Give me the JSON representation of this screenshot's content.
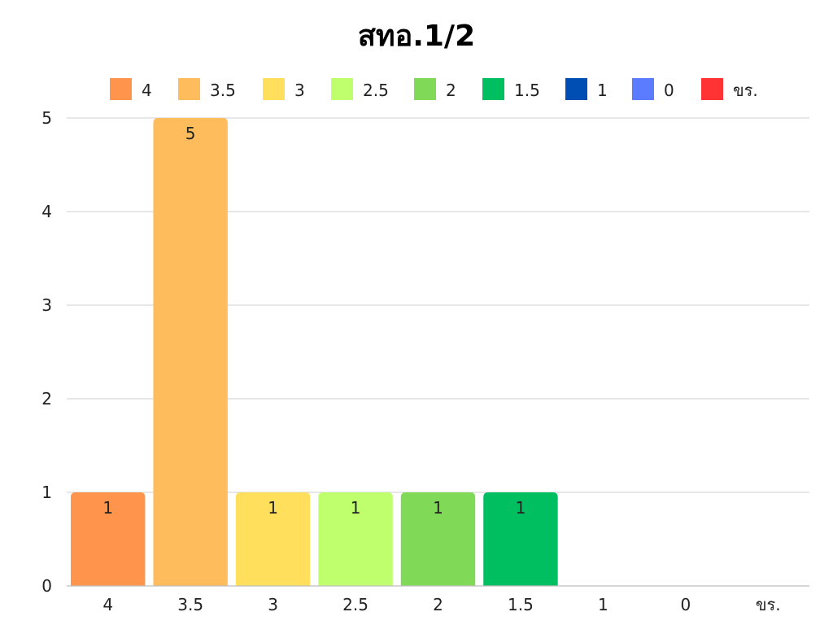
{
  "chart_data": {
    "type": "bar",
    "title": "สทอ.1/2",
    "categories": [
      "4",
      "3.5",
      "3",
      "2.5",
      "2",
      "1.5",
      "1",
      "0",
      "ขร."
    ],
    "series": [
      {
        "values": [
          1,
          5,
          1,
          1,
          1,
          1,
          0,
          0,
          0
        ]
      }
    ],
    "colors": [
      "#FF944D",
      "#FFBC5C",
      "#FFDF5C",
      "#BFFF6E",
      "#80D957",
      "#00BF60",
      "#004DB3",
      "#5C7CFF",
      "#FF3333"
    ],
    "legend": {
      "position": "top",
      "entries": [
        "4",
        "3.5",
        "3",
        "2.5",
        "2",
        "1.5",
        "1",
        "0",
        "ขร."
      ]
    },
    "ylim": [
      0,
      5
    ],
    "yticks": [
      "0",
      "1",
      "2",
      "3",
      "4",
      "5"
    ],
    "grid": true,
    "data_labels": [
      "1",
      "5",
      "1",
      "1",
      "1",
      "1",
      "",
      "",
      ""
    ],
    "xlabel": "",
    "ylabel": ""
  }
}
